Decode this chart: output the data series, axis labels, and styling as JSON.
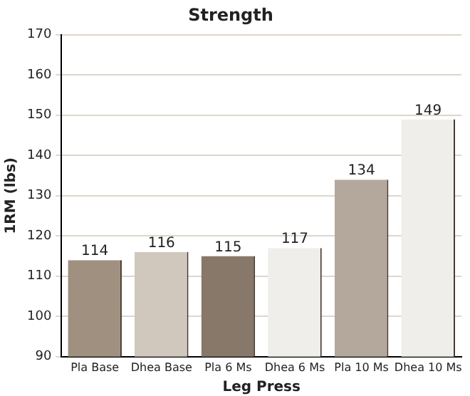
{
  "chart_data": {
    "type": "bar",
    "title": "Strength",
    "xlabel": "Leg Press",
    "ylabel": "1RM (lbs)",
    "categories": [
      "Pla Base",
      "Dhea Base",
      "Pla 6 Ms",
      "Dhea 6 Ms",
      "Pla 10 Ms",
      "Dhea 10 Ms"
    ],
    "values": [
      114,
      116,
      115,
      117,
      134,
      149
    ],
    "colors": [
      "#a09080",
      "#d0c8bc",
      "#88786a",
      "#f0eeea",
      "#b4a89c",
      "#f0eeea"
    ],
    "ylim": [
      90,
      170
    ],
    "yticks": [
      90,
      100,
      110,
      120,
      130,
      140,
      150,
      160,
      170
    ],
    "grid": "y",
    "data_labels": true
  }
}
